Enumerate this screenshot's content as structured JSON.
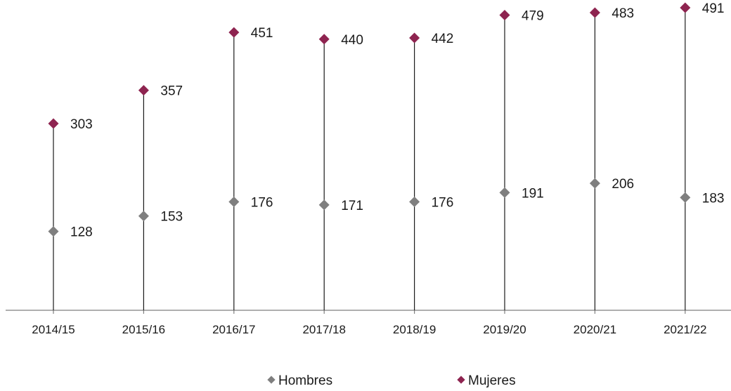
{
  "chart_data": {
    "type": "line",
    "categories": [
      "2014/15",
      "2015/16",
      "2016/17",
      "2017/18",
      "2018/19",
      "2019/20",
      "2020/21",
      "2021/22"
    ],
    "series": [
      {
        "name": "Hombres",
        "values": [
          128,
          153,
          176,
          171,
          176,
          191,
          206,
          183
        ],
        "color": "#7f7f7f"
      },
      {
        "name": "Mujeres",
        "values": [
          303,
          357,
          451,
          440,
          442,
          479,
          483,
          491
        ],
        "color": "#8e2450"
      }
    ],
    "ylim": [
      0,
      520
    ],
    "grid": false,
    "legend_position": "bottom",
    "marker": "diamond",
    "drop_lines": true
  },
  "legend": {
    "hombres": "Hombres",
    "mujeres": "Mujeres"
  }
}
